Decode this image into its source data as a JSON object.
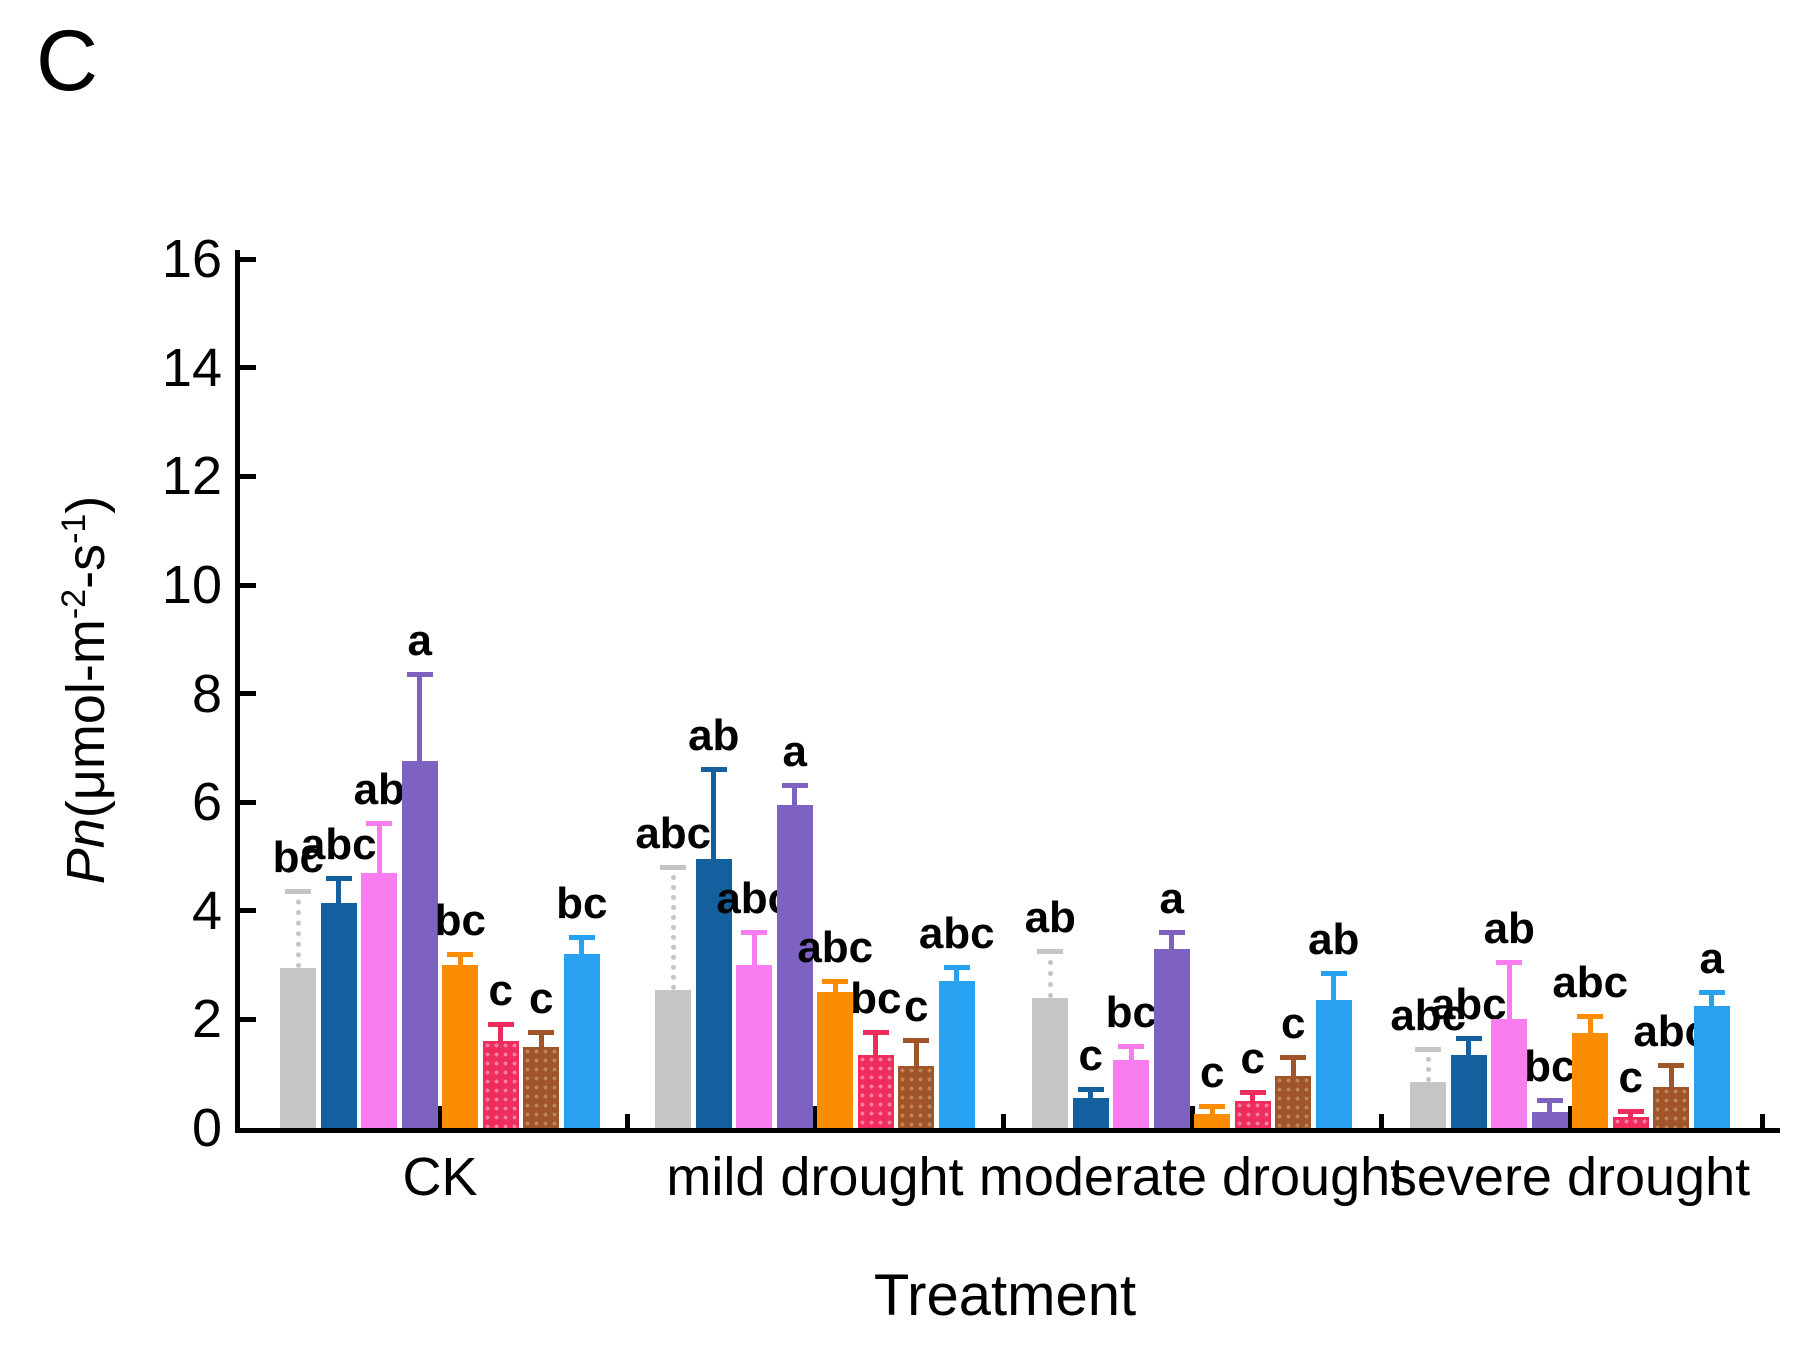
{
  "panel_label": "C",
  "chart_data": {
    "type": "bar",
    "title": "",
    "xlabel": "Treatment",
    "ylabel": "Pn(μmol-m⁻²-s⁻¹)",
    "ylabel_parts": {
      "variable": "Pn",
      "unit_open": "(μmol-m",
      "sup1": "-2",
      "unit_mid": "-s",
      "sup2": "-1",
      "unit_close": ")"
    },
    "ylim": [
      0,
      16
    ],
    "yticks": [
      0,
      2,
      4,
      6,
      8,
      10,
      12,
      14,
      16
    ],
    "grid": false,
    "legend": "none",
    "categories": [
      "CK",
      "mild drought",
      "moderate drought",
      "severe drought"
    ],
    "series": [
      {
        "color_name": "gray",
        "color": "#c5c5c5",
        "pattern": "solid",
        "stem_style": "dotted",
        "values": [
          2.95,
          2.55,
          2.4,
          0.85
        ],
        "errors": [
          1.45,
          2.3,
          0.9,
          0.65
        ],
        "letters": [
          "bc",
          "abc",
          "ab",
          "abc"
        ]
      },
      {
        "color_name": "dark-blue",
        "color": "#14609e",
        "pattern": "solid",
        "stem_style": "solid",
        "values": [
          4.15,
          4.95,
          0.55,
          1.35
        ],
        "errors": [
          0.5,
          1.7,
          0.2,
          0.35
        ],
        "letters": [
          "abc",
          "ab",
          "c",
          "abc"
        ]
      },
      {
        "color_name": "magenta",
        "color": "#fa7df0",
        "pattern": "solid",
        "stem_style": "solid",
        "values": [
          4.7,
          3.0,
          1.25,
          2.0
        ],
        "errors": [
          0.95,
          0.65,
          0.3,
          1.1
        ],
        "letters": [
          "ab",
          "abc",
          "bc",
          "ab"
        ]
      },
      {
        "color_name": "purple",
        "color": "#7e62c2",
        "pattern": "solid",
        "stem_style": "solid",
        "values": [
          6.75,
          5.95,
          3.3,
          0.3
        ],
        "errors": [
          1.65,
          0.4,
          0.35,
          0.25
        ],
        "letters": [
          "a",
          "a",
          "a",
          "bc"
        ]
      },
      {
        "color_name": "orange",
        "color": "#fc8c03",
        "pattern": "solid",
        "stem_style": "solid",
        "values": [
          3.0,
          2.5,
          0.25,
          1.75
        ],
        "errors": [
          0.25,
          0.25,
          0.2,
          0.35
        ],
        "letters": [
          "bc",
          "abc",
          "c",
          "abc"
        ]
      },
      {
        "color_name": "crimson",
        "color": "#ee2d5c",
        "dot_color": "#fb7fa5",
        "pattern": "dots",
        "stem_style": "solid",
        "values": [
          1.6,
          1.35,
          0.5,
          0.2
        ],
        "errors": [
          0.35,
          0.45,
          0.2,
          0.15
        ],
        "letters": [
          "c",
          "bc",
          "c",
          "c"
        ]
      },
      {
        "color_name": "brown",
        "color": "#a0542a",
        "dot_color": "#c08554",
        "pattern": "dots",
        "stem_style": "solid",
        "values": [
          1.5,
          1.15,
          0.95,
          0.75
        ],
        "errors": [
          0.3,
          0.5,
          0.4,
          0.45
        ],
        "letters": [
          "c",
          "c",
          "c",
          "abc"
        ]
      },
      {
        "color_name": "light-blue",
        "color": "#28a1f1",
        "pattern": "solid",
        "stem_style": "solid",
        "values": [
          3.2,
          2.7,
          2.35,
          2.25
        ],
        "errors": [
          0.35,
          0.3,
          0.55,
          0.3
        ],
        "letters": [
          "bc",
          "abc",
          "ab",
          "a"
        ]
      }
    ]
  }
}
